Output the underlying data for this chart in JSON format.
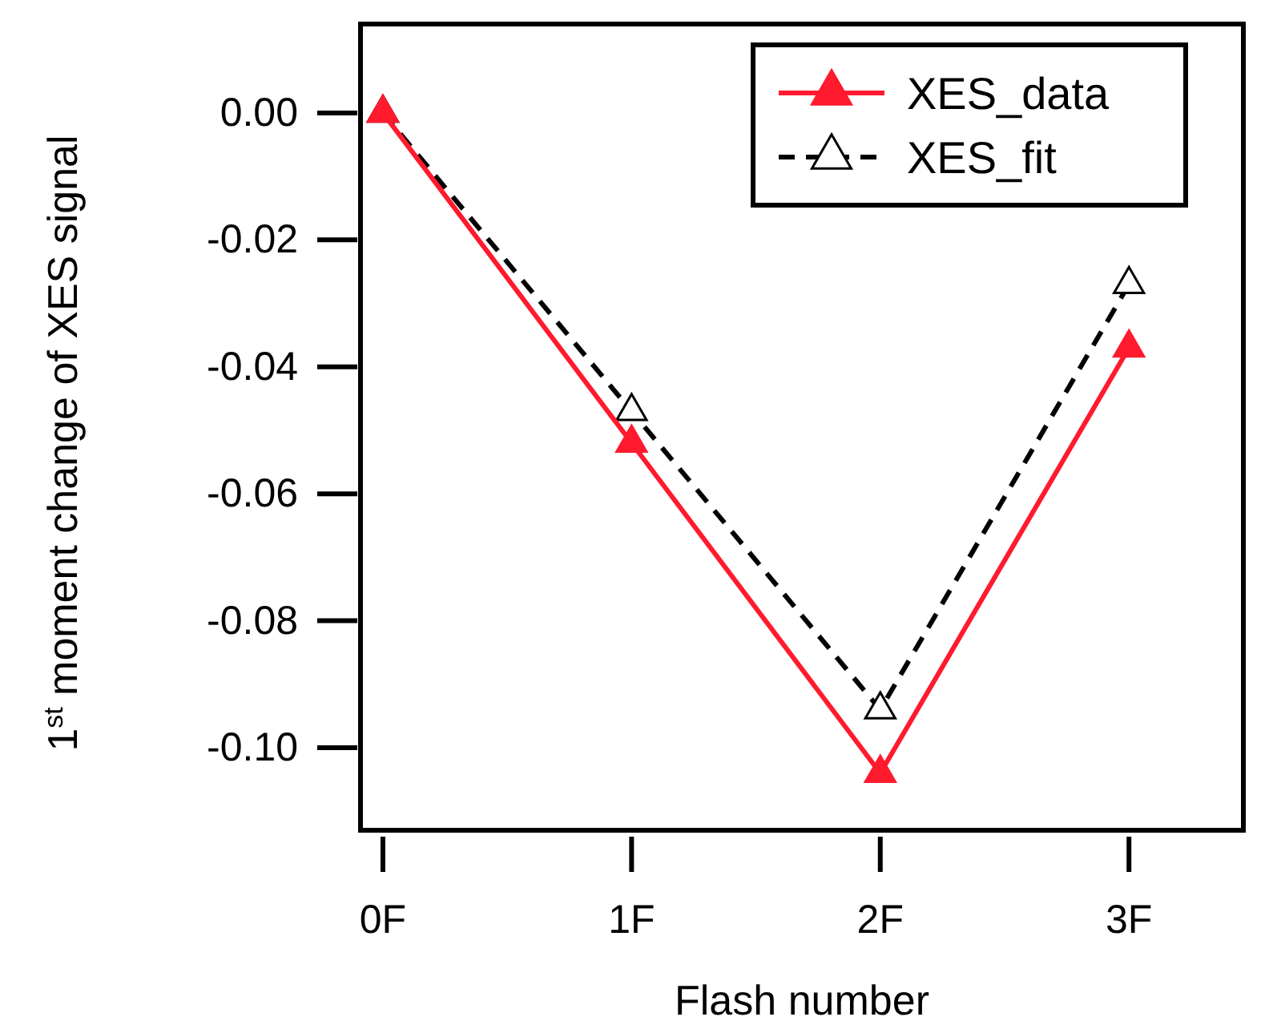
{
  "chart_data": {
    "type": "line",
    "xlabel": "Flash number",
    "ylabel": "1$^{st}$ moment change of XES signal",
    "x": [
      0,
      1,
      2,
      3
    ],
    "xlim": [
      -0.09,
      3.46
    ],
    "xticks": [
      {
        "value": 0,
        "label": "0F"
      },
      {
        "value": 1,
        "label": "1F"
      },
      {
        "value": 2,
        "label": "2F"
      },
      {
        "value": 3,
        "label": "3F"
      }
    ],
    "ylim": [
      -0.113,
      0.014
    ],
    "yticks": [
      {
        "value": 0,
        "label": "0.00"
      },
      {
        "value": -0.02,
        "label": "-0.02"
      },
      {
        "value": -0.04,
        "label": "-0.04"
      },
      {
        "value": -0.06,
        "label": "-0.06"
      },
      {
        "value": -0.08,
        "label": "-0.08"
      },
      {
        "value": -0.1,
        "label": "-0.10"
      }
    ],
    "series": [
      {
        "name": "XES_data",
        "color": "#ff1a2e",
        "values": [
          0,
          -0.052,
          -0.104,
          -0.037
        ],
        "marker": "triangle",
        "line_style": "solid"
      },
      {
        "name": "XES_fit",
        "color": "#000000",
        "values": [
          0,
          -0.047,
          -0.094,
          -0.027
        ],
        "marker": "triangle",
        "line_style": "dashed"
      }
    ],
    "grid": false,
    "legend": "top right"
  }
}
